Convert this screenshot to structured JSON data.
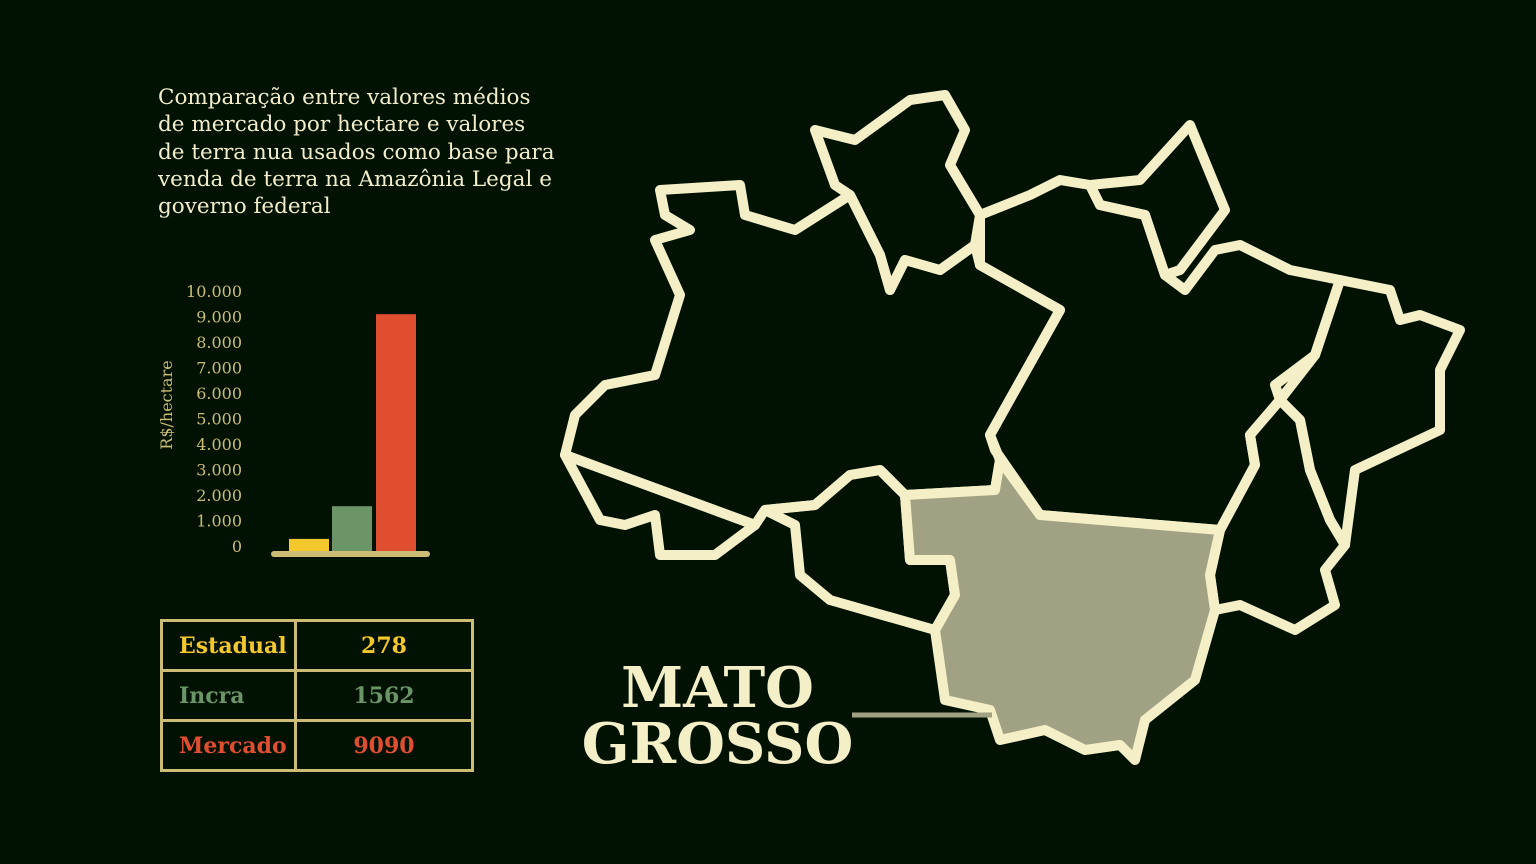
{
  "title": "Comparação entre valores médios de mercado por hectare e valores de terra nua usados como base para venda de terra na Amazônia Legal e governo federal",
  "chart_data": {
    "type": "bar",
    "categories": [
      "Estadual",
      "Incra",
      "Mercado"
    ],
    "values": [
      278,
      1562,
      9090
    ],
    "colors": [
      "#f4c82c",
      "#6b9566",
      "#df4e2f"
    ],
    "ylabel": "R$/hectare",
    "ylim": [
      0,
      10000
    ],
    "yticks": [
      "0",
      "1.000",
      "2.000",
      "3.000",
      "4.000",
      "5.000",
      "6.000",
      "7.000",
      "8.000",
      "9.000",
      "10.000"
    ],
    "grid": false
  },
  "table": {
    "rows": [
      {
        "label": "Estadual",
        "value": "278",
        "color": "#f4c82c"
      },
      {
        "label": "Incra",
        "value": "1562",
        "color": "#6b9566"
      },
      {
        "label": "Mercado",
        "value": "9090",
        "color": "#df4e2f"
      }
    ]
  },
  "map": {
    "highlight_label_line1": "MATO",
    "highlight_label_line2": "GROSSO",
    "outline_color": "#f5efc8",
    "highlight_color": "#a1a283"
  }
}
